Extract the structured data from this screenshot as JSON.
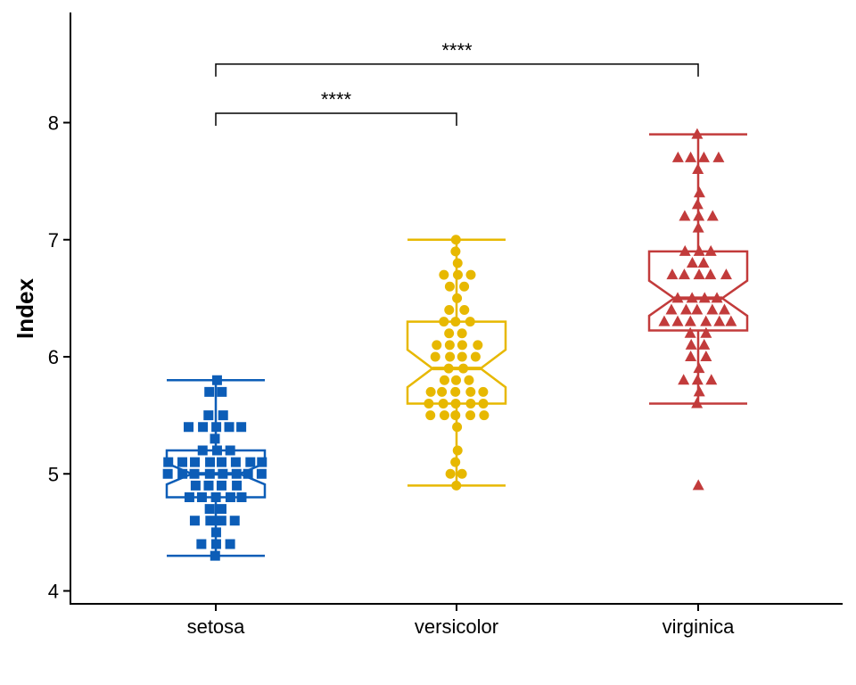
{
  "chart_data": {
    "type": "boxplot",
    "ylabel": "Index",
    "xlabel": "",
    "categories": [
      "setosa",
      "versicolor",
      "virginica"
    ],
    "ylim": [
      3.9,
      8.95
    ],
    "yticks": [
      4,
      5,
      6,
      7,
      8
    ],
    "grid": false,
    "legend": "none",
    "notched": true,
    "groups": [
      {
        "name": "setosa",
        "color": "#0C5DB7",
        "marker": "square",
        "box": {
          "min": 4.3,
          "q1": 4.8,
          "median": 5.0,
          "q3": 5.2,
          "max": 5.8,
          "notch_low": 4.91,
          "notch_high": 5.09
        },
        "values": [
          5.1,
          4.9,
          4.7,
          4.6,
          5.0,
          5.4,
          4.6,
          5.0,
          4.4,
          4.9,
          5.4,
          4.8,
          4.8,
          4.3,
          5.8,
          5.7,
          5.4,
          5.1,
          5.7,
          5.1,
          5.4,
          5.1,
          4.6,
          5.1,
          4.8,
          5.0,
          5.0,
          5.2,
          5.2,
          4.7,
          4.8,
          5.4,
          5.2,
          5.5,
          4.9,
          5.0,
          5.5,
          4.9,
          4.4,
          5.1,
          5.0,
          4.5,
          4.4,
          5.0,
          5.1,
          4.8,
          5.1,
          4.6,
          5.3,
          5.0
        ]
      },
      {
        "name": "versicolor",
        "color": "#E7B800",
        "marker": "circle",
        "box": {
          "min": 4.9,
          "q1": 5.6,
          "median": 5.9,
          "q3": 6.3,
          "max": 7.0,
          "notch_low": 5.74,
          "notch_high": 6.06
        },
        "values": [
          7.0,
          6.4,
          6.9,
          5.5,
          6.5,
          5.7,
          6.3,
          4.9,
          6.6,
          5.2,
          5.0,
          5.9,
          6.0,
          6.1,
          5.6,
          6.7,
          5.6,
          5.8,
          6.2,
          5.6,
          5.9,
          6.1,
          6.3,
          6.1,
          6.4,
          6.6,
          6.8,
          6.7,
          6.0,
          5.7,
          5.5,
          5.5,
          5.8,
          6.0,
          5.4,
          6.0,
          6.7,
          6.3,
          5.6,
          5.5,
          5.5,
          6.1,
          5.8,
          5.0,
          5.6,
          5.7,
          5.7,
          6.2,
          5.1,
          5.7
        ]
      },
      {
        "name": "virginica",
        "color": "#C23B3B",
        "marker": "triangle",
        "box": {
          "min": 5.6,
          "q1": 6.225,
          "median": 6.5,
          "q3": 6.9,
          "max": 7.9,
          "notch_low": 6.35,
          "notch_high": 6.65
        },
        "values": [
          6.3,
          5.8,
          7.1,
          6.3,
          6.5,
          7.6,
          4.9,
          7.3,
          6.7,
          7.2,
          6.5,
          6.4,
          6.8,
          5.7,
          5.8,
          6.4,
          6.5,
          7.7,
          7.7,
          6.0,
          6.9,
          5.6,
          7.7,
          6.3,
          6.7,
          7.2,
          6.2,
          6.1,
          6.4,
          7.2,
          7.4,
          7.9,
          6.4,
          6.3,
          6.1,
          7.7,
          6.3,
          6.4,
          6.0,
          6.9,
          6.7,
          6.9,
          5.8,
          6.8,
          6.7,
          6.7,
          6.3,
          6.5,
          6.2,
          5.9
        ]
      }
    ],
    "comparisons": [
      {
        "from": "setosa",
        "to": "versicolor",
        "y": 8.08,
        "label": "****"
      },
      {
        "from": "setosa",
        "to": "virginica",
        "y": 8.5,
        "label": "****"
      }
    ]
  }
}
